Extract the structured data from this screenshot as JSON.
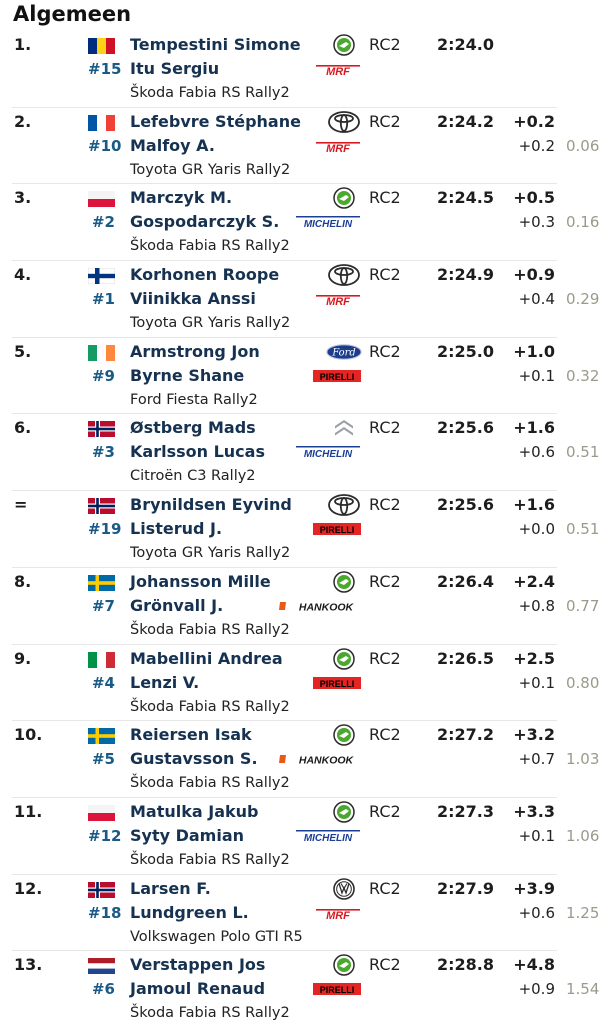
{
  "page": {
    "title": "Algemeen"
  },
  "colors": {
    "mrf": "#d71920",
    "pirelli": "#e52523",
    "michelin": "#1c3f96",
    "hankook": "#e8591a",
    "skoda": "#4ba82e"
  },
  "entries": [
    {
      "pos": "1.",
      "number": "#15",
      "flag": "ro",
      "driver": "Tempestini Simone",
      "codriver": "Itu Sergiu",
      "car": "Škoda Fabia RS Rally2",
      "brand": "skoda",
      "tyre": "mrf",
      "class": "RC2",
      "time": "2:24.0",
      "gap": "",
      "diff": "",
      "pct": ""
    },
    {
      "pos": "2.",
      "number": "#10",
      "flag": "fr",
      "driver": "Lefebvre Stéphane",
      "codriver": "Malfoy A.",
      "car": "Toyota GR Yaris Rally2",
      "brand": "toyota",
      "tyre": "mrf",
      "class": "RC2",
      "time": "2:24.2",
      "gap": "+0.2",
      "diff": "+0.2",
      "pct": "0.06"
    },
    {
      "pos": "3.",
      "number": "#2",
      "flag": "pl",
      "driver": "Marczyk M.",
      "codriver": "Gospodarczyk S.",
      "car": "Škoda Fabia RS Rally2",
      "brand": "skoda",
      "tyre": "michelin",
      "class": "RC2",
      "time": "2:24.5",
      "gap": "+0.5",
      "diff": "+0.3",
      "pct": "0.16"
    },
    {
      "pos": "4.",
      "number": "#1",
      "flag": "fi",
      "driver": "Korhonen Roope",
      "codriver": "Viinikka Anssi",
      "car": "Toyota GR Yaris Rally2",
      "brand": "toyota",
      "tyre": "mrf",
      "class": "RC2",
      "time": "2:24.9",
      "gap": "+0.9",
      "diff": "+0.4",
      "pct": "0.29"
    },
    {
      "pos": "5.",
      "number": "#9",
      "flag": "ie",
      "driver": "Armstrong Jon",
      "codriver": "Byrne Shane",
      "car": "Ford Fiesta Rally2",
      "brand": "ford",
      "tyre": "pirelli",
      "class": "RC2",
      "time": "2:25.0",
      "gap": "+1.0",
      "diff": "+0.1",
      "pct": "0.32"
    },
    {
      "pos": "6.",
      "number": "#3",
      "flag": "no",
      "driver": "Østberg Mads",
      "codriver": "Karlsson Lucas",
      "car": "Citroën C3 Rally2",
      "brand": "citroen",
      "tyre": "michelin",
      "class": "RC2",
      "time": "2:25.6",
      "gap": "+1.6",
      "diff": "+0.6",
      "pct": "0.51"
    },
    {
      "pos": "=",
      "number": "#19",
      "flag": "no",
      "driver": "Brynildsen Eyvind",
      "codriver": "Listerud J.",
      "car": "Toyota GR Yaris Rally2",
      "brand": "toyota",
      "tyre": "pirelli",
      "class": "RC2",
      "time": "2:25.6",
      "gap": "+1.6",
      "diff": "+0.0",
      "pct": "0.51"
    },
    {
      "pos": "8.",
      "number": "#7",
      "flag": "se",
      "driver": "Johansson Mille",
      "codriver": "Grönvall J.",
      "car": "Škoda Fabia RS Rally2",
      "brand": "skoda",
      "tyre": "hankook",
      "class": "RC2",
      "time": "2:26.4",
      "gap": "+2.4",
      "diff": "+0.8",
      "pct": "0.77"
    },
    {
      "pos": "9.",
      "number": "#4",
      "flag": "it",
      "driver": "Mabellini Andrea",
      "codriver": "Lenzi V.",
      "car": "Škoda Fabia RS Rally2",
      "brand": "skoda",
      "tyre": "pirelli",
      "class": "RC2",
      "time": "2:26.5",
      "gap": "+2.5",
      "diff": "+0.1",
      "pct": "0.80"
    },
    {
      "pos": "10.",
      "number": "#5",
      "flag": "se",
      "driver": "Reiersen Isak",
      "codriver": "Gustavsson S.",
      "car": "Škoda Fabia RS Rally2",
      "brand": "skoda",
      "tyre": "hankook",
      "class": "RC2",
      "time": "2:27.2",
      "gap": "+3.2",
      "diff": "+0.7",
      "pct": "1.03"
    },
    {
      "pos": "11.",
      "number": "#12",
      "flag": "pl",
      "driver": "Matulka Jakub",
      "codriver": "Syty Damian",
      "car": "Škoda Fabia RS Rally2",
      "brand": "skoda",
      "tyre": "michelin",
      "class": "RC2",
      "time": "2:27.3",
      "gap": "+3.3",
      "diff": "+0.1",
      "pct": "1.06"
    },
    {
      "pos": "12.",
      "number": "#18",
      "flag": "no",
      "driver": "Larsen F.",
      "codriver": "Lundgreen L.",
      "car": "Volkswagen Polo GTI R5",
      "brand": "vw",
      "tyre": "mrf",
      "class": "RC2",
      "time": "2:27.9",
      "gap": "+3.9",
      "diff": "+0.6",
      "pct": "1.25"
    },
    {
      "pos": "13.",
      "number": "#6",
      "flag": "nl",
      "driver": "Verstappen Jos",
      "codriver": "Jamoul Renaud",
      "car": "Škoda Fabia RS Rally2",
      "brand": "skoda",
      "tyre": "pirelli",
      "class": "RC2",
      "time": "2:28.8",
      "gap": "+4.8",
      "diff": "+0.9",
      "pct": "1.54"
    }
  ]
}
